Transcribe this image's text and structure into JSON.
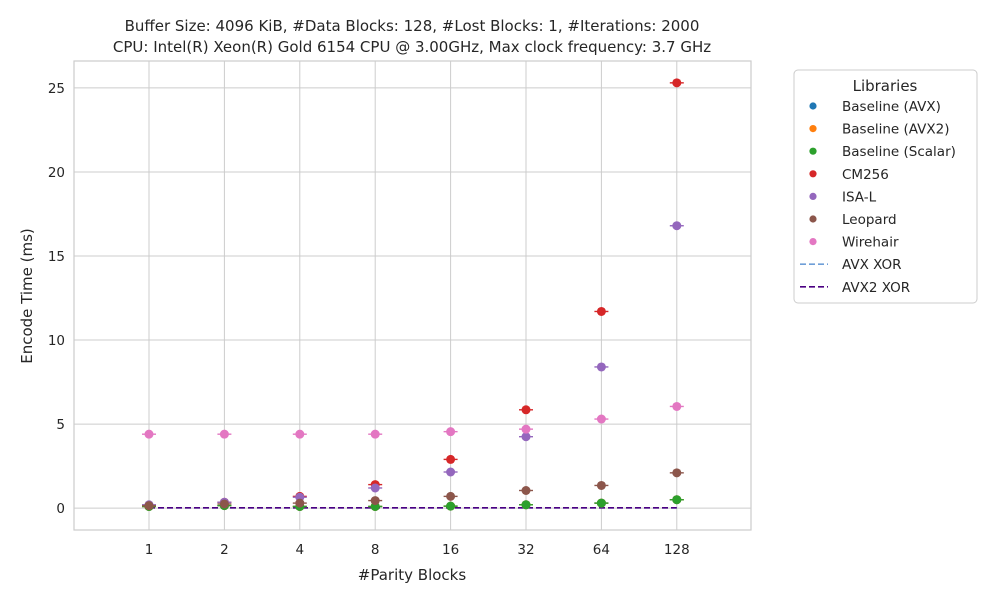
{
  "chart_data": {
    "type": "scatter",
    "title_lines": [
      "Buffer Size: 4096 KiB, #Data Blocks: 128, #Lost Blocks: 1, #Iterations: 2000",
      "CPU: Intel(R) Xeon(R) Gold 6154 CPU @ 3.00GHz, Max clock frequency: 3.7 GHz"
    ],
    "xlabel": "#Parity Blocks",
    "ylabel": "Encode Time (ms)",
    "categories": [
      "1",
      "2",
      "4",
      "8",
      "16",
      "32",
      "64",
      "128"
    ],
    "ylim": [
      -1.3,
      26.6
    ],
    "yticks": [
      0,
      5,
      10,
      15,
      20,
      25
    ],
    "grid": true,
    "legend": {
      "title": "Libraries",
      "placement": "outside-right"
    },
    "series": [
      {
        "name": "Baseline (AVX)",
        "color": "#1f77b4",
        "values": [
          0.1,
          0.15,
          0.1,
          0.1,
          0.12,
          0.2,
          0.3,
          0.5
        ]
      },
      {
        "name": "Baseline (AVX2)",
        "color": "#ff7f0e",
        "values": [
          0.1,
          0.15,
          0.1,
          0.1,
          0.12,
          0.2,
          0.3,
          0.5
        ]
      },
      {
        "name": "Baseline (Scalar)",
        "color": "#2ca02c",
        "values": [
          0.1,
          0.15,
          0.1,
          0.1,
          0.12,
          0.2,
          0.3,
          0.5
        ]
      },
      {
        "name": "CM256",
        "color": "#d62728",
        "values": [
          0.15,
          0.35,
          0.7,
          1.4,
          2.9,
          5.85,
          11.7,
          25.3
        ]
      },
      {
        "name": "ISA-L",
        "color": "#9467bd",
        "values": [
          0.2,
          0.35,
          0.65,
          1.2,
          2.15,
          4.25,
          8.4,
          16.8
        ]
      },
      {
        "name": "Leopard",
        "color": "#8c564b",
        "values": [
          0.15,
          0.25,
          0.3,
          0.45,
          0.7,
          1.05,
          1.35,
          2.1
        ]
      },
      {
        "name": "Wirehair",
        "color": "#e377c2",
        "values": [
          4.4,
          4.4,
          4.4,
          4.4,
          4.55,
          4.7,
          5.3,
          6.05
        ]
      }
    ],
    "lines": [
      {
        "name": "AVX XOR",
        "color": "#6f9fd8",
        "style": "dashed",
        "values": [
          0.02,
          0.02,
          0.02,
          0.02,
          0.02,
          0.02,
          0.02,
          0.02
        ]
      },
      {
        "name": "AVX2 XOR",
        "color": "#4b0082",
        "style": "dashed",
        "values": [
          0.02,
          0.02,
          0.02,
          0.02,
          0.02,
          0.02,
          0.02,
          0.02
        ]
      }
    ]
  }
}
